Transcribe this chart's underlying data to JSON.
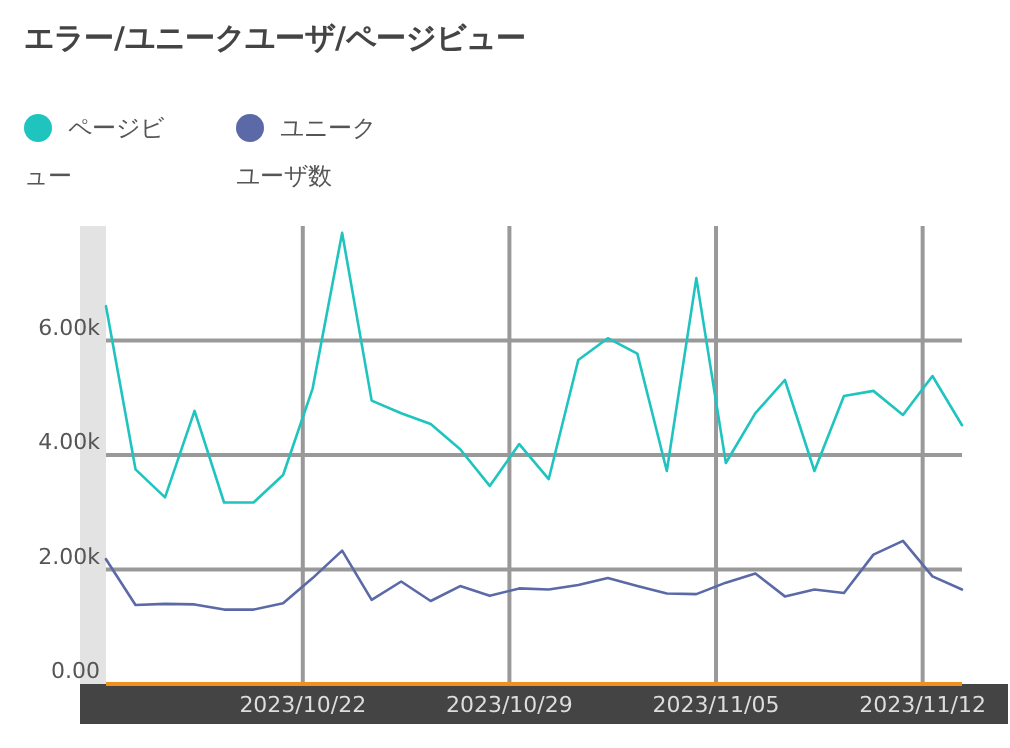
{
  "chart_data": {
    "type": "line",
    "title": "エラー/ユニークユーザ/ページビュー",
    "x": [
      "2023-10-15T08:00",
      "2023-10-16T08:00",
      "2023-10-17T08:00",
      "2023-10-18T08:00",
      "2023-10-19T08:00",
      "2023-10-20T08:00",
      "2023-10-21T08:00",
      "2023-10-22T08:00",
      "2023-10-23T08:00",
      "2023-10-24T08:00",
      "2023-10-25T08:00",
      "2023-10-26T08:00",
      "2023-10-27T08:00",
      "2023-10-28T08:00",
      "2023-10-29T08:00",
      "2023-10-30T08:00",
      "2023-10-31T08:00",
      "2023-11-01T08:00",
      "2023-11-02T08:00",
      "2023-11-03T08:00",
      "2023-11-04T08:00",
      "2023-11-05T08:00",
      "2023-11-06T08:00",
      "2023-11-07T08:00",
      "2023-11-08T08:00",
      "2023-11-09T08:00",
      "2023-11-10T08:00",
      "2023-11-11T08:00",
      "2023-11-12T08:00",
      "2023-11-13T08:00"
    ],
    "series": [
      {
        "name": "ページビュー",
        "color": "#1fc4bf",
        "values": [
          6600,
          3750,
          3260,
          4770,
          3170,
          3170,
          3650,
          5160,
          7880,
          4950,
          4730,
          4540,
          4100,
          3460,
          4190,
          3580,
          5660,
          6040,
          5770,
          3720,
          7090,
          3860,
          4730,
          5310,
          3720,
          5030,
          5120,
          4700,
          5380,
          4520
        ]
      },
      {
        "name": "ユニークユーザ数",
        "color": "#5b6aa6",
        "values": [
          2180,
          1380,
          1400,
          1390,
          1300,
          1300,
          1410,
          1850,
          2330,
          1470,
          1790,
          1450,
          1710,
          1540,
          1670,
          1650,
          1730,
          1850,
          1710,
          1580,
          1570,
          1770,
          1930,
          1530,
          1650,
          1590,
          2260,
          2500,
          1880,
          1650
        ]
      }
    ],
    "xlim": [
      "2023-10-15T08:00",
      "2023-11-13T08:00"
    ],
    "xticks": [
      {
        "value": "2023-10-22",
        "label": "2023/10/22"
      },
      {
        "value": "2023-10-29",
        "label": "2023/10/29"
      },
      {
        "value": "2023-11-05",
        "label": "2023/11/05"
      },
      {
        "value": "2023-11-12",
        "label": "2023/11/12"
      }
    ],
    "ylim": [
      0,
      8000
    ],
    "yticks": [
      {
        "value": 0,
        "label": "0.00"
      },
      {
        "value": 2000,
        "label": "2.00k"
      },
      {
        "value": 4000,
        "label": "4.00k"
      },
      {
        "value": 6000,
        "label": "6.00k"
      }
    ],
    "grid": true,
    "legend": "top left",
    "marker": "none",
    "line_style": "solid"
  }
}
